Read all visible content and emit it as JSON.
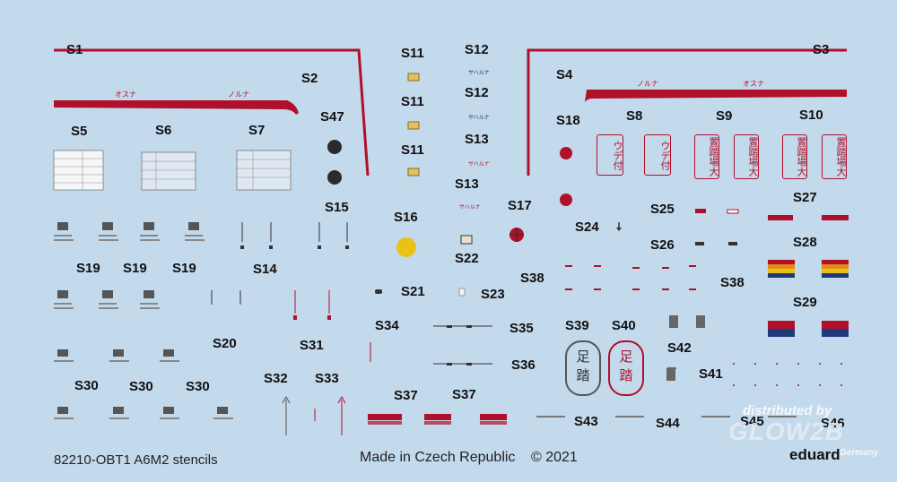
{
  "labels": {
    "s1": "S1",
    "s2": "S2",
    "s3": "S3",
    "s4": "S4",
    "s5": "S5",
    "s6": "S6",
    "s7": "S7",
    "s8": "S8",
    "s9": "S9",
    "s10": "S10",
    "s11a": "S11",
    "s11b": "S11",
    "s11c": "S11",
    "s12a": "S12",
    "s12b": "S12",
    "s13a": "S13",
    "s13b": "S13",
    "s14": "S14",
    "s15": "S15",
    "s16": "S16",
    "s17": "S17",
    "s18": "S18",
    "s19a": "S19",
    "s19b": "S19",
    "s19c": "S19",
    "s20": "S20",
    "s21": "S21",
    "s22": "S22",
    "s23": "S23",
    "s24": "S24",
    "s25": "S25",
    "s26": "S26",
    "s27": "S27",
    "s28": "S28",
    "s29": "S29",
    "s30a": "S30",
    "s30b": "S30",
    "s30c": "S30",
    "s31": "S31",
    "s32": "S32",
    "s33": "S33",
    "s34": "S34",
    "s35": "S35",
    "s36": "S36",
    "s37a": "S37",
    "s37b": "S37",
    "s38a": "S38",
    "s38b": "S38",
    "s39": "S39",
    "s40": "S40",
    "s41": "S41",
    "s42": "S42",
    "s43": "S43",
    "s44": "S44",
    "s45": "S45",
    "s46": "S46",
    "s47": "S47"
  },
  "kana": {
    "s1_left": "オスナ",
    "s1_right": "ノルナ",
    "s3_left": "ノルナ",
    "s3_right": "オスナ",
    "s12_a": "サハルナ",
    "s12_b": "サハルナ",
    "s13_a": "サハルナ",
    "s13_b": "サハルナ"
  },
  "cjk": {
    "s8": "ウデ付",
    "s9": "置踏場大",
    "s10": "置踏場大",
    "s39": "足踏",
    "s40": "足踏"
  },
  "footer": {
    "product": "82210-OBT1 A6M2 stencils",
    "made_in": "Made in Czech Republic",
    "copyright": "© 2021",
    "brand": "eduard"
  },
  "watermark": {
    "line1": "distributed by",
    "line2": "GLOW2B",
    "line3": "Germany"
  },
  "colors": {
    "background": "#c3d9ec",
    "stencil_red": "#b0102a",
    "dark": "#2b2b2b",
    "blue": "#1f3a7a",
    "yellow": "#e9c217",
    "flag_orange": "#e58a14"
  }
}
